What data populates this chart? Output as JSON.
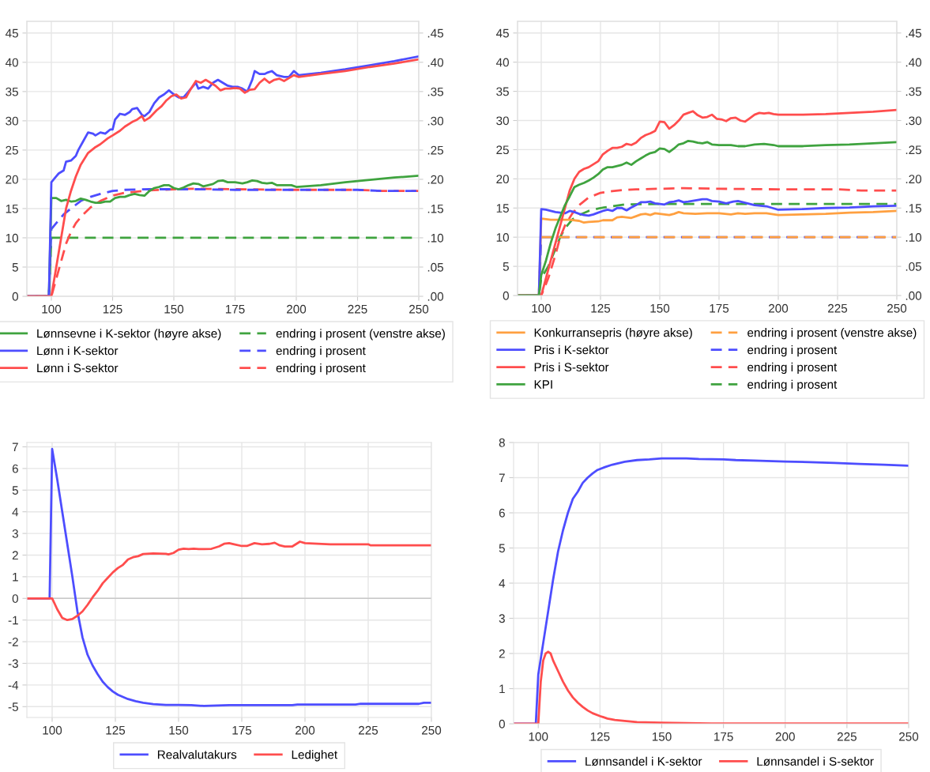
{
  "chart_data": [
    {
      "type": "line",
      "x": [
        90,
        99,
        100,
        102,
        104,
        106,
        108,
        110,
        112,
        114,
        116,
        118,
        120,
        122,
        124,
        126,
        128,
        130,
        132,
        134,
        136,
        138,
        140,
        142,
        144,
        146,
        148,
        150,
        152,
        154,
        156,
        158,
        160,
        162,
        164,
        166,
        168,
        170,
        172,
        175,
        178,
        180,
        182,
        184,
        186,
        188,
        190,
        192,
        195,
        198,
        200,
        210,
        220,
        230,
        240,
        250
      ],
      "xlim": [
        90,
        250
      ],
      "xticks": [
        100,
        125,
        150,
        175,
        200,
        225,
        250
      ],
      "ylim": [
        0,
        47
      ],
      "yticks": [
        0,
        5,
        10,
        15,
        20,
        25,
        30,
        35,
        40,
        45
      ],
      "y2lim": [
        0,
        0.47
      ],
      "y2ticks": [
        {
          "value": 0,
          "label": ".00"
        },
        {
          "value": 0.05,
          "label": ".05"
        },
        {
          "value": 0.1,
          "label": ".10"
        },
        {
          "value": 0.15,
          "label": ".15"
        },
        {
          "value": 0.2,
          "label": ".20"
        },
        {
          "value": 0.25,
          "label": ".25"
        },
        {
          "value": 0.3,
          "label": ".30"
        },
        {
          "value": 0.35,
          "label": ".35"
        },
        {
          "value": 0.4,
          "label": ".40"
        },
        {
          "value": 0.45,
          "label": ".45"
        }
      ],
      "grid": true,
      "legend": "bottom",
      "series": [
        {
          "name": "Lønnsevne i K-sektor (høyre akse)",
          "color": "#3fa33f",
          "axis": "y2",
          "line_style": "solid",
          "values": [
            0,
            0,
            0.168,
            0.168,
            0.163,
            0.165,
            0.162,
            0.163,
            0.167,
            0.165,
            0.162,
            0.16,
            0.16,
            0.162,
            0.162,
            0.168,
            0.17,
            0.17,
            0.173,
            0.175,
            0.173,
            0.172,
            0.18,
            0.185,
            0.187,
            0.19,
            0.19,
            0.185,
            0.183,
            0.186,
            0.19,
            0.193,
            0.192,
            0.188,
            0.19,
            0.192,
            0.197,
            0.198,
            0.195,
            0.195,
            0.193,
            0.195,
            0.198,
            0.197,
            0.194,
            0.193,
            0.194,
            0.19,
            0.19,
            0.19,
            0.187,
            0.19,
            0.195,
            0.199,
            0.203,
            0.206
          ]
        },
        {
          "name": "Lønn i K-sektor",
          "color": "#4d4dff",
          "axis": "y2",
          "line_style": "solid",
          "x": [
            90,
            99,
            100,
            102,
            103,
            105,
            106,
            108,
            110,
            111,
            113,
            115,
            117,
            118,
            120,
            122,
            124,
            125,
            126,
            128,
            130,
            132,
            133,
            135,
            137,
            138,
            140,
            142,
            144,
            146,
            148,
            150,
            152,
            154,
            156,
            158,
            159,
            160,
            162,
            164,
            166,
            168,
            170,
            172,
            174,
            176,
            178,
            180,
            182,
            183,
            185,
            187,
            188,
            190,
            192,
            195,
            197,
            199,
            201,
            210,
            220,
            230,
            240,
            250
          ],
          "values": [
            0,
            0,
            0.195,
            0.205,
            0.21,
            0.215,
            0.23,
            0.232,
            0.24,
            0.25,
            0.265,
            0.28,
            0.278,
            0.275,
            0.28,
            0.278,
            0.285,
            0.285,
            0.302,
            0.312,
            0.31,
            0.315,
            0.32,
            0.322,
            0.31,
            0.308,
            0.315,
            0.33,
            0.34,
            0.345,
            0.352,
            0.345,
            0.34,
            0.34,
            0.35,
            0.36,
            0.365,
            0.355,
            0.358,
            0.355,
            0.365,
            0.37,
            0.365,
            0.36,
            0.358,
            0.358,
            0.355,
            0.35,
            0.37,
            0.385,
            0.38,
            0.38,
            0.382,
            0.385,
            0.378,
            0.375,
            0.375,
            0.385,
            0.378,
            0.382,
            0.388,
            0.395,
            0.402,
            0.41
          ]
        },
        {
          "name": "Lønn i S-sektor",
          "color": "#ff4d4d",
          "axis": "y2",
          "line_style": "solid",
          "x": [
            90,
            100,
            102,
            104,
            106,
            108,
            110,
            112,
            115,
            118,
            120,
            123,
            125,
            128,
            130,
            133,
            135,
            137,
            138,
            140,
            143,
            145,
            147,
            149,
            151,
            153,
            155,
            157,
            159,
            161,
            163,
            165,
            167,
            169,
            171,
            173,
            175,
            177,
            179,
            181,
            183,
            185,
            187,
            189,
            191,
            193,
            195,
            197,
            199,
            201,
            210,
            220,
            230,
            240,
            250
          ],
          "values": [
            0,
            0,
            0.05,
            0.1,
            0.15,
            0.18,
            0.205,
            0.225,
            0.245,
            0.255,
            0.26,
            0.27,
            0.275,
            0.283,
            0.29,
            0.298,
            0.302,
            0.308,
            0.3,
            0.305,
            0.318,
            0.325,
            0.335,
            0.342,
            0.345,
            0.338,
            0.34,
            0.355,
            0.368,
            0.365,
            0.37,
            0.365,
            0.36,
            0.352,
            0.355,
            0.355,
            0.356,
            0.355,
            0.348,
            0.353,
            0.354,
            0.365,
            0.372,
            0.365,
            0.37,
            0.372,
            0.368,
            0.373,
            0.378,
            0.375,
            0.38,
            0.385,
            0.392,
            0.398,
            0.405
          ]
        },
        {
          "name": "endring i prosent (venstre akse)",
          "color": "#3fa33f",
          "axis": "y",
          "line_style": "dashed",
          "x": [
            90,
            99,
            100,
            150,
            200,
            250
          ],
          "values": [
            0,
            0,
            10,
            10,
            10,
            10
          ]
        },
        {
          "name": "endring i prosent",
          "color": "#4d4dff",
          "axis": "y",
          "line_style": "dashed",
          "x": [
            90,
            99,
            100,
            102,
            105,
            108,
            112,
            116,
            120,
            125,
            130,
            140,
            150,
            160,
            175,
            200,
            225,
            235,
            250
          ],
          "values": [
            0,
            0,
            11.5,
            12.5,
            14,
            15,
            16.3,
            17,
            17.5,
            18,
            18.2,
            18.3,
            18.3,
            18.3,
            18.2,
            18.2,
            18.2,
            18,
            18
          ]
        },
        {
          "name": "endring i prosent",
          "color": "#ff4d4d",
          "axis": "y",
          "line_style": "dashed",
          "x": [
            90,
            100,
            102,
            104,
            106,
            108,
            110,
            113,
            116,
            120,
            125,
            130,
            140,
            150,
            160,
            175,
            200,
            225,
            235,
            250
          ],
          "values": [
            0,
            0,
            3,
            6,
            9,
            11,
            12.5,
            14,
            15.2,
            16.3,
            17.2,
            17.7,
            18.1,
            18.3,
            18.4,
            18.3,
            18.2,
            18.2,
            18,
            18
          ]
        }
      ]
    },
    {
      "type": "line",
      "x": [
        90,
        99,
        100,
        104,
        108,
        112,
        116,
        118,
        120,
        124,
        126,
        130,
        132,
        134,
        136,
        138,
        140,
        142,
        144,
        146,
        148,
        150,
        154,
        156,
        158,
        160,
        165,
        170,
        175,
        180,
        183,
        186,
        190,
        195,
        200,
        210,
        220,
        230,
        240,
        250
      ],
      "xlim": [
        90,
        250
      ],
      "xticks": [
        100,
        125,
        150,
        175,
        200,
        225,
        250
      ],
      "ylim": [
        0,
        47
      ],
      "yticks": [
        0,
        5,
        10,
        15,
        20,
        25,
        30,
        35,
        40,
        45
      ],
      "y2lim": [
        0,
        0.47
      ],
      "y2ticks": [
        {
          "value": 0,
          "label": ".00"
        },
        {
          "value": 0.05,
          "label": ".05"
        },
        {
          "value": 0.1,
          "label": ".10"
        },
        {
          "value": 0.15,
          "label": ".15"
        },
        {
          "value": 0.2,
          "label": ".20"
        },
        {
          "value": 0.25,
          "label": ".25"
        },
        {
          "value": 0.3,
          "label": ".30"
        },
        {
          "value": 0.35,
          "label": ".35"
        },
        {
          "value": 0.4,
          "label": ".40"
        },
        {
          "value": 0.45,
          "label": ".45"
        }
      ],
      "grid": true,
      "legend": "bottom",
      "series": [
        {
          "name": "Konkurransepris (høyre akse)",
          "color": "#ffa040",
          "axis": "y2",
          "line_style": "solid",
          "values": [
            0,
            0,
            0.132,
            0.13,
            0.13,
            0.13,
            0.128,
            0.125,
            0.126,
            0.127,
            0.129,
            0.129,
            0.134,
            0.135,
            0.134,
            0.133,
            0.136,
            0.139,
            0.14,
            0.138,
            0.141,
            0.14,
            0.138,
            0.14,
            0.143,
            0.141,
            0.14,
            0.141,
            0.141,
            0.139,
            0.141,
            0.14,
            0.141,
            0.141,
            0.138,
            0.139,
            0.14,
            0.142,
            0.143,
            0.145
          ]
        },
        {
          "name": "Pris i K-sektor",
          "color": "#4d4dff",
          "axis": "y2",
          "line_style": "solid",
          "x": [
            90,
            99,
            100,
            102,
            104,
            106,
            108,
            110,
            112,
            114,
            116,
            118,
            120,
            122,
            124,
            126,
            128,
            130,
            132,
            134,
            136,
            138,
            140,
            142,
            144,
            146,
            148,
            150,
            152,
            154,
            156,
            158,
            160,
            162,
            165,
            168,
            170,
            172,
            175,
            178,
            181,
            183,
            186,
            190,
            195,
            200,
            210,
            220,
            230,
            240,
            250
          ],
          "values": [
            0,
            0,
            0.148,
            0.147,
            0.145,
            0.143,
            0.142,
            0.141,
            0.145,
            0.143,
            0.14,
            0.138,
            0.137,
            0.139,
            0.142,
            0.145,
            0.147,
            0.145,
            0.15,
            0.15,
            0.146,
            0.151,
            0.155,
            0.16,
            0.16,
            0.161,
            0.158,
            0.157,
            0.156,
            0.16,
            0.161,
            0.163,
            0.16,
            0.161,
            0.163,
            0.165,
            0.165,
            0.162,
            0.161,
            0.158,
            0.161,
            0.162,
            0.159,
            0.155,
            0.153,
            0.147,
            0.148,
            0.15,
            0.151,
            0.153,
            0.154
          ]
        },
        {
          "name": "Pris i S-sektor",
          "color": "#ff4d4d",
          "axis": "y2",
          "line_style": "solid",
          "x": [
            90,
            100,
            102,
            104,
            106,
            108,
            110,
            112,
            114,
            116,
            118,
            120,
            122,
            124,
            126,
            128,
            130,
            132,
            134,
            136,
            138,
            140,
            142,
            144,
            146,
            148,
            150,
            152,
            154,
            156,
            158,
            160,
            162,
            164,
            166,
            168,
            170,
            172,
            174,
            176,
            178,
            180,
            182,
            184,
            186,
            188,
            190,
            192,
            194,
            196,
            198,
            200,
            210,
            220,
            230,
            240,
            250
          ],
          "values": [
            0,
            0,
            0.03,
            0.06,
            0.09,
            0.12,
            0.15,
            0.18,
            0.2,
            0.212,
            0.217,
            0.22,
            0.225,
            0.23,
            0.242,
            0.248,
            0.253,
            0.253,
            0.255,
            0.26,
            0.258,
            0.262,
            0.27,
            0.275,
            0.278,
            0.282,
            0.298,
            0.297,
            0.286,
            0.292,
            0.3,
            0.31,
            0.313,
            0.316,
            0.309,
            0.305,
            0.306,
            0.31,
            0.303,
            0.302,
            0.299,
            0.304,
            0.305,
            0.3,
            0.298,
            0.304,
            0.31,
            0.313,
            0.312,
            0.313,
            0.311,
            0.31,
            0.31,
            0.311,
            0.313,
            0.315,
            0.318
          ]
        },
        {
          "name": "KPI",
          "color": "#3fa33f",
          "axis": "y2",
          "line_style": "solid",
          "x": [
            90,
            99,
            100,
            102,
            104,
            106,
            108,
            110,
            112,
            114,
            116,
            118,
            120,
            122,
            124,
            126,
            128,
            130,
            132,
            134,
            136,
            138,
            140,
            142,
            144,
            146,
            148,
            150,
            152,
            154,
            156,
            158,
            160,
            162,
            164,
            166,
            168,
            170,
            172,
            175,
            178,
            180,
            183,
            186,
            190,
            194,
            198,
            200,
            210,
            220,
            230,
            240,
            250
          ],
          "values": [
            0,
            0,
            0.035,
            0.06,
            0.09,
            0.115,
            0.135,
            0.155,
            0.17,
            0.186,
            0.19,
            0.193,
            0.197,
            0.202,
            0.208,
            0.216,
            0.22,
            0.22,
            0.222,
            0.224,
            0.228,
            0.224,
            0.23,
            0.235,
            0.24,
            0.244,
            0.246,
            0.252,
            0.251,
            0.246,
            0.252,
            0.259,
            0.261,
            0.265,
            0.264,
            0.262,
            0.261,
            0.263,
            0.259,
            0.258,
            0.258,
            0.258,
            0.256,
            0.256,
            0.259,
            0.26,
            0.258,
            0.256,
            0.256,
            0.258,
            0.259,
            0.261,
            0.263
          ]
        },
        {
          "name": "endring i prosent (venstre akse)",
          "color": "#ffa040",
          "axis": "y",
          "line_style": "dashed",
          "x": [
            100,
            150,
            200,
            250
          ],
          "values": [
            10,
            10,
            10,
            10
          ]
        },
        {
          "name": "endring i prosent",
          "color": "#4d4dff",
          "axis": "y",
          "line_style": "dashed",
          "x": [
            90,
            99,
            100,
            150,
            200,
            250
          ],
          "values": [
            0,
            0,
            10,
            10,
            10,
            10
          ]
        },
        {
          "name": "endring i prosent",
          "color": "#ff4d4d",
          "axis": "y",
          "line_style": "dashed",
          "x": [
            90,
            100,
            103,
            106,
            108,
            110,
            113,
            116,
            120,
            125,
            130,
            135,
            140,
            150,
            160,
            175,
            200,
            225,
            235,
            250
          ],
          "values": [
            0,
            0,
            3,
            7,
            10,
            12,
            14,
            15.5,
            16.8,
            17.6,
            17.9,
            18.1,
            18.2,
            18.3,
            18.4,
            18.3,
            18.2,
            18.2,
            18,
            18
          ]
        },
        {
          "name": "endring i prosent",
          "color": "#3fa33f",
          "axis": "y",
          "line_style": "dashed",
          "x": [
            90,
            99,
            100,
            103,
            106,
            108,
            110,
            113,
            116,
            120,
            125,
            130,
            135,
            150,
            200,
            250
          ],
          "values": [
            0,
            0,
            3,
            5,
            8,
            10,
            11.5,
            13,
            13.8,
            14.5,
            15,
            15.3,
            15.6,
            15.7,
            15.7,
            15.7
          ]
        }
      ]
    },
    {
      "type": "line",
      "xlim": [
        90,
        250
      ],
      "xticks": [
        100,
        125,
        150,
        175,
        200,
        225,
        250
      ],
      "ylim": [
        -5.5,
        7.2
      ],
      "yticks": [
        -5,
        -4,
        -3,
        -2,
        -1,
        0,
        1,
        2,
        3,
        4,
        5,
        6,
        7
      ],
      "grid": true,
      "legend": "bottom",
      "ref_lines": [
        {
          "axis": "y",
          "value": 0,
          "color": "#c8c8c8"
        }
      ],
      "series": [
        {
          "name": "Realvalutakurs",
          "color": "#4d4dff",
          "x": [
            90,
            99,
            100,
            102,
            104,
            106,
            108,
            110,
            112,
            114,
            116,
            118,
            120,
            122,
            124,
            126,
            128,
            130,
            133,
            136,
            140,
            145,
            150,
            155,
            160,
            165,
            170,
            180,
            195,
            197,
            220,
            222,
            245,
            247,
            250
          ],
          "values": [
            0,
            0,
            6.9,
            5.5,
            4,
            2.5,
            1,
            -0.6,
            -1.8,
            -2.6,
            -3.1,
            -3.5,
            -3.85,
            -4.1,
            -4.3,
            -4.45,
            -4.55,
            -4.65,
            -4.75,
            -4.82,
            -4.88,
            -4.92,
            -4.92,
            -4.93,
            -4.97,
            -4.95,
            -4.93,
            -4.93,
            -4.93,
            -4.9,
            -4.9,
            -4.87,
            -4.87,
            -4.82,
            -4.82
          ]
        },
        {
          "name": "Ledighet",
          "color": "#ff4d4d",
          "x": [
            90,
            100,
            102,
            104,
            106,
            108,
            110,
            112,
            114,
            116,
            118,
            120,
            122,
            124,
            126,
            128,
            130,
            132,
            134,
            136,
            140,
            145,
            146,
            148,
            150,
            152,
            154,
            156,
            158,
            160,
            163,
            166,
            168,
            170,
            172,
            175,
            177,
            180,
            183,
            186,
            188,
            190,
            192,
            195,
            198,
            200,
            210,
            225,
            226,
            250
          ],
          "values": [
            0,
            0,
            -0.5,
            -0.9,
            -1,
            -0.95,
            -0.8,
            -0.6,
            -0.3,
            0.05,
            0.35,
            0.7,
            0.95,
            1.2,
            1.4,
            1.55,
            1.8,
            1.9,
            1.95,
            2.05,
            2.08,
            2.06,
            2.03,
            2.1,
            2.25,
            2.3,
            2.28,
            2.3,
            2.28,
            2.28,
            2.29,
            2.4,
            2.52,
            2.55,
            2.5,
            2.42,
            2.42,
            2.55,
            2.5,
            2.52,
            2.57,
            2.45,
            2.4,
            2.4,
            2.62,
            2.55,
            2.5,
            2.5,
            2.45,
            2.45
          ]
        }
      ]
    },
    {
      "type": "line",
      "xlim": [
        90,
        250
      ],
      "xticks": [
        100,
        125,
        150,
        175,
        200,
        225,
        250
      ],
      "ylim": [
        0,
        8
      ],
      "yticks": [
        0,
        1,
        2,
        3,
        4,
        5,
        6,
        7,
        8
      ],
      "grid": true,
      "legend": "bottom",
      "series": [
        {
          "name": "Lønnsandel i K-sektor",
          "color": "#4d4dff",
          "x": [
            90,
            99,
            100,
            102,
            104,
            106,
            108,
            110,
            112,
            114,
            116,
            118,
            120,
            122,
            124,
            127,
            130,
            135,
            140,
            145,
            150,
            160,
            165,
            175,
            180,
            190,
            200,
            210,
            220,
            230,
            240,
            250
          ],
          "values": [
            0,
            0,
            1.4,
            2.3,
            3.2,
            4.1,
            4.9,
            5.5,
            6,
            6.4,
            6.6,
            6.85,
            7,
            7.12,
            7.22,
            7.3,
            7.37,
            7.45,
            7.5,
            7.52,
            7.55,
            7.55,
            7.53,
            7.52,
            7.5,
            7.48,
            7.46,
            7.44,
            7.42,
            7.39,
            7.37,
            7.34
          ]
        },
        {
          "name": "Lønnsandel i S-sektor",
          "color": "#ff4d4d",
          "x": [
            90,
            100,
            101,
            102,
            103,
            104,
            105,
            106,
            108,
            110,
            112,
            114,
            116,
            118,
            120,
            122,
            125,
            128,
            131,
            135,
            140,
            150,
            160,
            170,
            200,
            250
          ],
          "values": [
            0,
            0,
            1.2,
            1.8,
            2,
            2.05,
            2,
            1.8,
            1.5,
            1.2,
            0.95,
            0.75,
            0.6,
            0.48,
            0.38,
            0.3,
            0.22,
            0.15,
            0.11,
            0.08,
            0.05,
            0.03,
            0.02,
            0.01,
            0.01,
            0.01
          ]
        }
      ]
    }
  ]
}
